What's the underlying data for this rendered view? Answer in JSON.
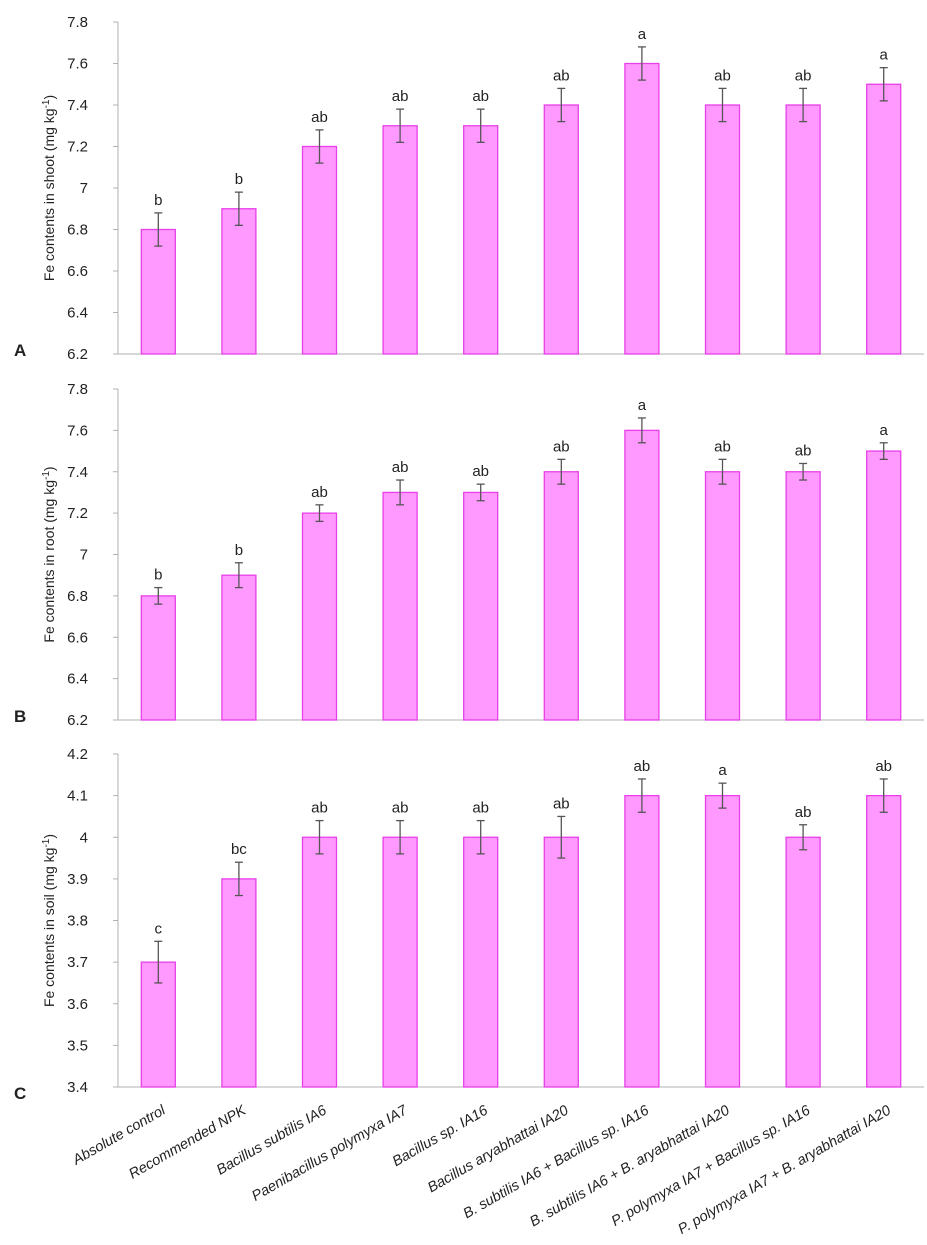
{
  "colors": {
    "bar_fill": "#ff99ff",
    "bar_stroke": "#e83fe8",
    "axis": "#b0b0b0",
    "error_bar": "#555555"
  },
  "category_labels": [
    [
      {
        "t": "Absolute control",
        "i": true
      }
    ],
    [
      {
        "t": "Recommended NPK",
        "i": true
      }
    ],
    [
      {
        "t": "Bacillus subtilis",
        "i": true
      },
      {
        "t": " IA6",
        "i": true
      }
    ],
    [
      {
        "t": "Paenibacillus polymyxa",
        "i": true
      },
      {
        "t": " IA7",
        "i": true
      }
    ],
    [
      {
        "t": "Bacillus",
        "i": true
      },
      {
        "t": " sp. IA16",
        "i": true
      }
    ],
    [
      {
        "t": "Bacillus aryabhattai",
        "i": true
      },
      {
        "t": " IA20",
        "i": true
      }
    ],
    [
      {
        "t": "B. subtilis",
        "i": true
      },
      {
        "t": " IA6 + ",
        "i": true
      },
      {
        "t": "Bacillus",
        "i": true
      },
      {
        "t": " sp. IA16",
        "i": true
      }
    ],
    [
      {
        "t": "B. subtilis",
        "i": true
      },
      {
        "t": " IA6 + ",
        "i": true
      },
      {
        "t": "B. aryabhattai",
        "i": true
      },
      {
        "t": " IA20",
        "i": true
      }
    ],
    [
      {
        "t": "P. polymyxa",
        "i": true
      },
      {
        "t": " IA7 + ",
        "i": true
      },
      {
        "t": "Bacillus",
        "i": true
      },
      {
        "t": " sp. IA16",
        "i": true
      }
    ],
    [
      {
        "t": "P. polymyxa",
        "i": true
      },
      {
        "t": " IA7 + ",
        "i": true
      },
      {
        "t": "B. aryabhattai",
        "i": true
      },
      {
        "t": " IA20",
        "i": true
      }
    ]
  ],
  "chart_data": [
    {
      "type": "bar",
      "panel_label": "A",
      "ylabel": "Fe contents in shoot (mg kg⁻¹)",
      "ylabel_parts": [
        "Fe contents in shoot (mg kg",
        "-1",
        ")"
      ],
      "ylim": [
        6.2,
        7.8
      ],
      "yticks": [
        "6.2",
        "6.4",
        "6.6",
        "6.8",
        "7",
        "7.2",
        "7.4",
        "7.6",
        "7.8"
      ],
      "categories": [
        "Absolute control",
        "Recommended NPK",
        "Bacillus subtilis IA6",
        "Paenibacillus polymyxa IA7",
        "Bacillus sp. IA16",
        "Bacillus aryabhattai IA20",
        "B. subtilis IA6 + Bacillus sp. IA16",
        "B. subtilis IA6 + B. aryabhattai IA20",
        "P. polymyxa IA7 + Bacillus sp. IA16",
        "P. polymyxa IA7 + B. aryabhattai IA20"
      ],
      "values": [
        6.8,
        6.9,
        7.2,
        7.3,
        7.3,
        7.4,
        7.6,
        7.4,
        7.4,
        7.5
      ],
      "errors": [
        0.08,
        0.08,
        0.08,
        0.08,
        0.08,
        0.08,
        0.08,
        0.08,
        0.08,
        0.08
      ],
      "significance": [
        "b",
        "b",
        "ab",
        "ab",
        "ab",
        "ab",
        "a",
        "ab",
        "ab",
        "a"
      ],
      "grid": false
    },
    {
      "type": "bar",
      "panel_label": "B",
      "ylabel": "Fe contents in root (mg kg⁻¹)",
      "ylabel_parts": [
        "Fe contents in root (mg kg",
        "-1",
        ")"
      ],
      "ylim": [
        6.2,
        7.8
      ],
      "yticks": [
        "6.2",
        "6.4",
        "6.6",
        "6.8",
        "7",
        "7.2",
        "7.4",
        "7.6",
        "7.8"
      ],
      "categories": [
        "Absolute control",
        "Recommended NPK",
        "Bacillus subtilis IA6",
        "Paenibacillus polymyxa IA7",
        "Bacillus sp. IA16",
        "Bacillus aryabhattai IA20",
        "B. subtilis IA6 + Bacillus sp. IA16",
        "B. subtilis IA6 + B. aryabhattai IA20",
        "P. polymyxa IA7 + Bacillus sp. IA16",
        "P. polymyxa IA7 + B. aryabhattai IA20"
      ],
      "values": [
        6.8,
        6.9,
        7.2,
        7.3,
        7.3,
        7.4,
        7.6,
        7.4,
        7.4,
        7.5
      ],
      "errors": [
        0.04,
        0.06,
        0.04,
        0.06,
        0.04,
        0.06,
        0.06,
        0.06,
        0.04,
        0.04
      ],
      "significance": [
        "b",
        "b",
        "ab",
        "ab",
        "ab",
        "ab",
        "a",
        "ab",
        "ab",
        "a"
      ],
      "grid": false
    },
    {
      "type": "bar",
      "panel_label": "C",
      "ylabel": "Fe contents in soil (mg kg⁻¹)",
      "ylabel_parts": [
        "Fe contents in soil (mg kg",
        "-1",
        ")"
      ],
      "ylim": [
        3.4,
        4.2
      ],
      "yticks": [
        "3.4",
        "3.5",
        "3.6",
        "3.7",
        "3.8",
        "3.9",
        "4",
        "4.1",
        "4.2"
      ],
      "categories": [
        "Absolute control",
        "Recommended NPK",
        "Bacillus subtilis IA6",
        "Paenibacillus polymyxa IA7",
        "Bacillus sp. IA16",
        "Bacillus aryabhattai IA20",
        "B. subtilis IA6 + Bacillus sp. IA16",
        "B. subtilis IA6 + B. aryabhattai IA20",
        "P. polymyxa IA7 + Bacillus sp. IA16",
        "P. polymyxa IA7 + B. aryabhattai IA20"
      ],
      "values": [
        3.7,
        3.9,
        4.0,
        4.0,
        4.0,
        4.0,
        4.1,
        4.1,
        4.0,
        4.1
      ],
      "errors": [
        0.05,
        0.04,
        0.04,
        0.04,
        0.04,
        0.05,
        0.04,
        0.03,
        0.03,
        0.04
      ],
      "significance": [
        "c",
        "bc",
        "ab",
        "ab",
        "ab",
        "ab",
        "ab",
        "a",
        "ab",
        "ab"
      ],
      "grid": false
    }
  ]
}
